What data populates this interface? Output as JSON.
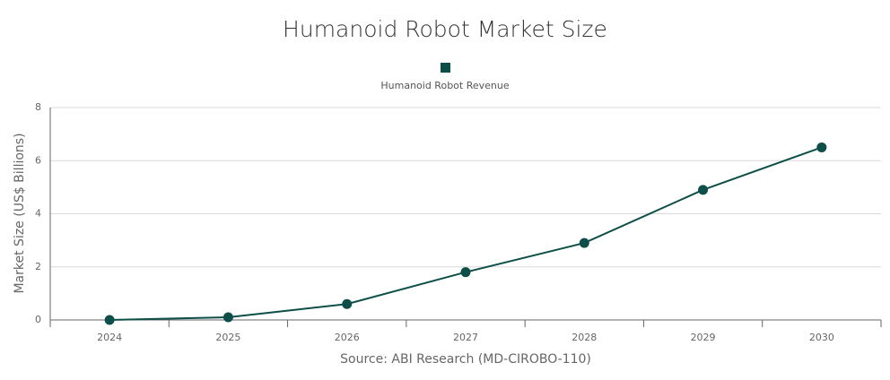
{
  "chart_data": {
    "type": "line",
    "title": "Humanoid Robot Market Size",
    "y_label": "Market Size (US$ Billions)",
    "x_label": "Source: ABI Research (MD-CIROBO-110)",
    "categories": [
      "2024",
      "2025",
      "2026",
      "2027",
      "2028",
      "2029",
      "2030"
    ],
    "series": [
      {
        "name": "Humanoid Robot Revenue",
        "color": "#0d4f48",
        "values": [
          0.0,
          0.1,
          0.6,
          1.8,
          2.9,
          4.9,
          6.5
        ]
      }
    ],
    "ylim": [
      0,
      8
    ],
    "yticks": [
      0,
      2,
      4,
      6,
      8
    ],
    "grid": true,
    "legend": "top"
  }
}
